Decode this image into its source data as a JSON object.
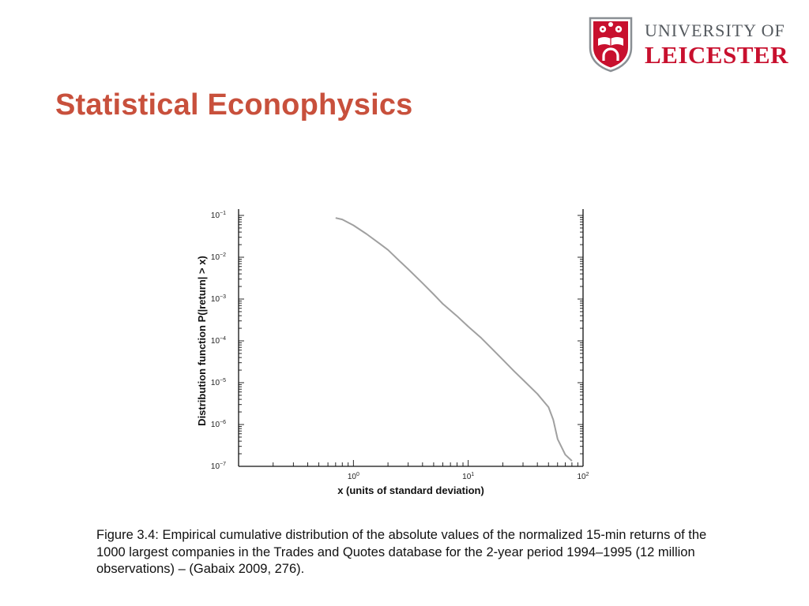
{
  "slide": {
    "title": "Statistical Econophysics",
    "caption": "Figure 3.4: Empirical cumulative distribution of the absolute values of the normalized 15-min returns of the 1000 largest companies in the Trades and Quotes database for the 2-year period 1994–1995 (12 million observations) – (Gabaix 2009, 276)."
  },
  "logo": {
    "line1": "UNIVERSITY OF",
    "line2": "LEICESTER",
    "colors": {
      "crest": "#c8102e",
      "text_grey": "#555a5f"
    }
  },
  "colors": {
    "title": "#c8503c",
    "curve": "#a0a0a0"
  },
  "chart_data": {
    "type": "line",
    "xscale": "log",
    "yscale": "log",
    "xlim": [
      0.1,
      100
    ],
    "ylim": [
      1e-07,
      0.1
    ],
    "xlabel": "x (units of standard deviation)",
    "ylabel": "Distribution function P(|return| > x)",
    "x_ticks": [
      {
        "value": 1,
        "base": "10",
        "exp": "0"
      },
      {
        "value": 10,
        "base": "10",
        "exp": "1"
      },
      {
        "value": 100,
        "base": "10",
        "exp": "2"
      }
    ],
    "y_ticks": [
      {
        "value": 0.1,
        "base": "10",
        "exp": "−1"
      },
      {
        "value": 0.01,
        "base": "10",
        "exp": "−2"
      },
      {
        "value": 0.001,
        "base": "10",
        "exp": "−3"
      },
      {
        "value": 0.0001,
        "base": "10",
        "exp": "−4"
      },
      {
        "value": 1e-05,
        "base": "10",
        "exp": "−5"
      },
      {
        "value": 1e-06,
        "base": "10",
        "exp": "−6"
      },
      {
        "value": 1e-07,
        "base": "10",
        "exp": "−7"
      }
    ],
    "series": [
      {
        "x": [
          0.7,
          0.8,
          1.0,
          1.3,
          1.7,
          2.0,
          2.5,
          3.0,
          4.0,
          5.0,
          6.0,
          8.0,
          10,
          13,
          16,
          20,
          25,
          30,
          40,
          50,
          55,
          60,
          70,
          80
        ],
        "y": [
          0.087,
          0.08,
          0.058,
          0.036,
          0.021,
          0.015,
          0.0083,
          0.0052,
          0.0024,
          0.0013,
          0.00077,
          0.00039,
          0.00022,
          0.000117,
          6.6e-05,
          3.55e-05,
          1.9e-05,
          1.17e-05,
          5.4e-06,
          2.6e-06,
          1.3e-06,
          4.5e-07,
          1.9e-07,
          1.35e-07
        ]
      }
    ]
  }
}
